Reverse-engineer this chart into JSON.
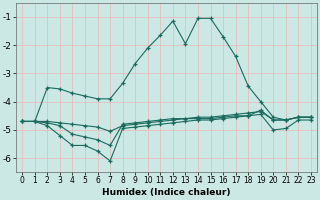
{
  "xlabel": "Humidex (Indice chaleur)",
  "bg_color": "#cce8e4",
  "grid_color": "#e8b8b8",
  "line_color": "#1a6b5e",
  "xlim": [
    -0.5,
    23.5
  ],
  "ylim": [
    -6.5,
    -0.5
  ],
  "yticks": [
    -6,
    -5,
    -4,
    -3,
    -2,
    -1
  ],
  "xticks": [
    0,
    1,
    2,
    3,
    4,
    5,
    6,
    7,
    8,
    9,
    10,
    11,
    12,
    13,
    14,
    15,
    16,
    17,
    18,
    19,
    20,
    21,
    22,
    23
  ],
  "line1_x": [
    0,
    1,
    2,
    3,
    4,
    5,
    6,
    7,
    8,
    9,
    10,
    11,
    12,
    13,
    14,
    15,
    16,
    17,
    18,
    19,
    20,
    21,
    22,
    23
  ],
  "line1_y": [
    -4.7,
    -4.7,
    -3.5,
    -3.55,
    -3.7,
    -3.8,
    -3.9,
    -3.9,
    -3.35,
    -2.65,
    -2.1,
    -1.65,
    -1.15,
    -1.95,
    -1.05,
    -1.05,
    -1.7,
    -2.4,
    -3.45,
    -4.0,
    -4.55,
    -4.65,
    -4.55,
    -4.55
  ],
  "line2_x": [
    0,
    1,
    2,
    3,
    4,
    5,
    6,
    7,
    8,
    9,
    10,
    11,
    12,
    13,
    14,
    15,
    16,
    17,
    18,
    19,
    20,
    21,
    22,
    23
  ],
  "line2_y": [
    -4.7,
    -4.7,
    -4.75,
    -4.85,
    -5.15,
    -5.25,
    -5.35,
    -5.55,
    -4.8,
    -4.75,
    -4.7,
    -4.65,
    -4.6,
    -4.6,
    -4.55,
    -4.55,
    -4.5,
    -4.45,
    -4.4,
    -4.35,
    -4.65,
    -4.65,
    -4.55,
    -4.55
  ],
  "line3_x": [
    0,
    1,
    2,
    3,
    4,
    5,
    6,
    7,
    8,
    9,
    10,
    11,
    12,
    13,
    14,
    15,
    16,
    17,
    18,
    19,
    20,
    21,
    22,
    23
  ],
  "line3_y": [
    -4.7,
    -4.7,
    -4.85,
    -5.2,
    -5.55,
    -5.55,
    -5.75,
    -6.1,
    -4.95,
    -4.9,
    -4.85,
    -4.8,
    -4.75,
    -4.7,
    -4.65,
    -4.65,
    -4.6,
    -4.55,
    -4.5,
    -4.45,
    -5.0,
    -4.95,
    -4.65,
    -4.65
  ],
  "line4_x": [
    0,
    1,
    2,
    3,
    4,
    5,
    6,
    7,
    8,
    9,
    10,
    11,
    12,
    13,
    14,
    15,
    16,
    17,
    18,
    19,
    20,
    21,
    22,
    23
  ],
  "line4_y": [
    -4.7,
    -4.7,
    -4.7,
    -4.75,
    -4.8,
    -4.85,
    -4.9,
    -5.05,
    -4.85,
    -4.8,
    -4.75,
    -4.7,
    -4.65,
    -4.6,
    -4.6,
    -4.6,
    -4.55,
    -4.5,
    -4.5,
    -4.3,
    -4.65,
    -4.65,
    -4.55,
    -4.55
  ]
}
